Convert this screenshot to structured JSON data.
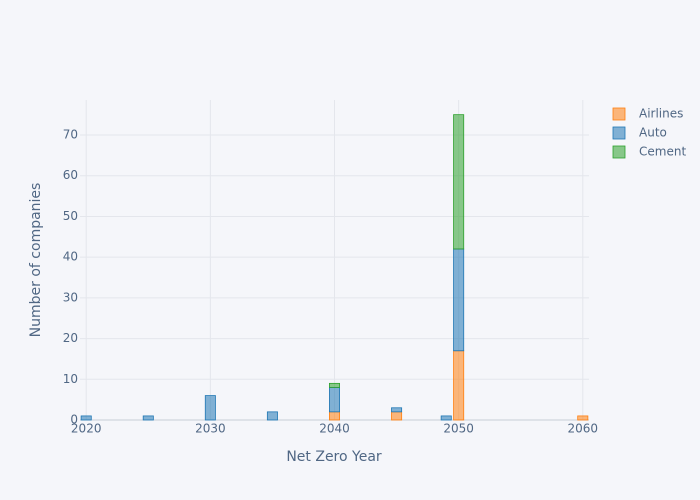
{
  "chart_data": {
    "type": "stacked_bar",
    "xlabel": "Net Zero Year",
    "ylabel": "Number of companies",
    "x": [
      2020,
      2025,
      2030,
      2035,
      2040,
      2045,
      2049,
      2050,
      2060
    ],
    "series": [
      {
        "name": "Airlines",
        "color": "#ff7f0e",
        "values": [
          null,
          null,
          null,
          null,
          2,
          2,
          null,
          17,
          1
        ]
      },
      {
        "name": "Auto",
        "color": "#1f77b4",
        "values": [
          1,
          1,
          6,
          2,
          6,
          1,
          1,
          25,
          null
        ]
      },
      {
        "name": "Cement",
        "color": "#2ca02c",
        "values": [
          null,
          null,
          null,
          null,
          1,
          null,
          null,
          33,
          null
        ]
      }
    ],
    "xlim": [
      2019.5,
      2060.5
    ],
    "ylim": [
      0,
      78.6
    ],
    "xticks": [
      2020,
      2030,
      2040,
      2050,
      2060
    ],
    "yticks": [
      0,
      10,
      20,
      30,
      40,
      50,
      60,
      70
    ],
    "grid": true
  }
}
